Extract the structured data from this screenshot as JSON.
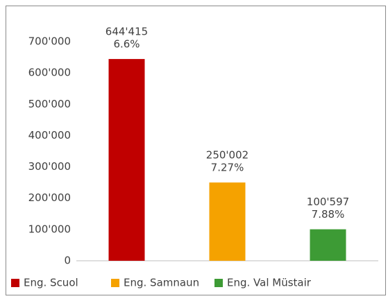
{
  "chart_data": {
    "type": "bar",
    "categories": [
      "Eng. Scuol",
      "Eng. Samnaun",
      "Eng. Val Müstair"
    ],
    "values": [
      644415,
      250002,
      100597
    ],
    "value_labels": [
      "644'415",
      "250'002",
      "100'597"
    ],
    "percentages": [
      6.6,
      7.27,
      7.88
    ],
    "percentage_labels": [
      "6.6%",
      "7.27%",
      "7.88%"
    ],
    "colors": [
      "#c00000",
      "#f5a200",
      "#3d9b35"
    ],
    "ylim": [
      0,
      700000
    ],
    "yticks": [
      0,
      {
        "value": 100000,
        "label": "100'000"
      },
      {
        "value": 200000,
        "label": "200'000"
      },
      {
        "value": 300000,
        "label": "300'000"
      },
      {
        "value": 400000,
        "label": "400'000"
      },
      {
        "value": 500000,
        "label": "500'000"
      },
      {
        "value": 600000,
        "label": "600'000"
      },
      {
        "value": 700000,
        "label": "700'000"
      }
    ],
    "grid": false,
    "legend": "bottom"
  }
}
